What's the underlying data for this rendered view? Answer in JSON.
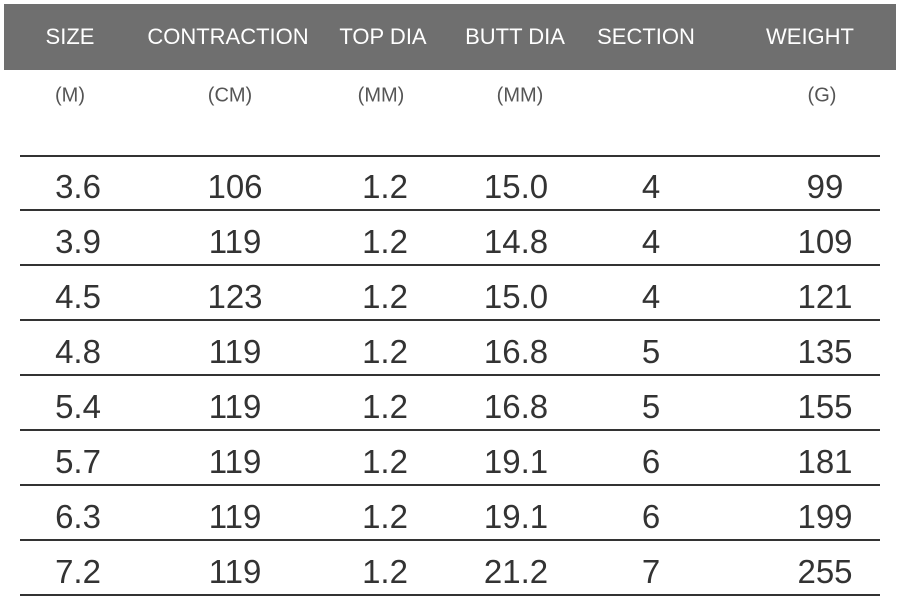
{
  "table": {
    "header": [
      "SIZE",
      "CONTRACTION",
      "TOP DIA",
      "BUTT DIA",
      "SECTION",
      "WEIGHT"
    ],
    "units": [
      "(M)",
      "(CM)",
      "(MM)",
      "(MM)",
      null,
      "(G)"
    ],
    "rows": [
      [
        "3.6",
        "106",
        "1.2",
        "15.0",
        "4",
        "99"
      ],
      [
        "3.9",
        "119",
        "1.2",
        "14.8",
        "4",
        "109"
      ],
      [
        "4.5",
        "123",
        "1.2",
        "15.0",
        "4",
        "121"
      ],
      [
        "4.8",
        "119",
        "1.2",
        "16.8",
        "5",
        "135"
      ],
      [
        "5.4",
        "119",
        "1.2",
        "16.8",
        "5",
        "155"
      ],
      [
        "5.7",
        "119",
        "1.2",
        "19.1",
        "6",
        "181"
      ],
      [
        "6.3",
        "119",
        "1.2",
        "19.1",
        "6",
        "199"
      ],
      [
        "7.2",
        "119",
        "1.2",
        "21.2",
        "7",
        "255"
      ]
    ]
  }
}
